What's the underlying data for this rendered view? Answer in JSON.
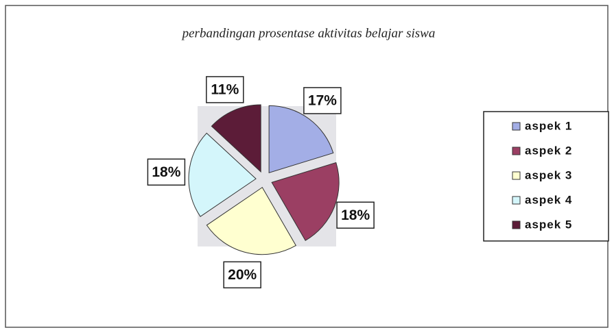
{
  "chart_data": {
    "type": "pie",
    "title": "perbandingan prosentase aktivitas belajar siswa",
    "categories": [
      "aspek 1",
      "aspek 2",
      "aspek 3",
      "aspek 4",
      "aspek 5"
    ],
    "values": [
      17,
      18,
      20,
      18,
      11
    ],
    "value_labels": [
      "17%",
      "18%",
      "20%",
      "18%",
      "11%"
    ],
    "colors": [
      "#a3aee6",
      "#9b3f63",
      "#ffffd0",
      "#d4f6fb",
      "#5c1c38"
    ],
    "legend": "right"
  }
}
